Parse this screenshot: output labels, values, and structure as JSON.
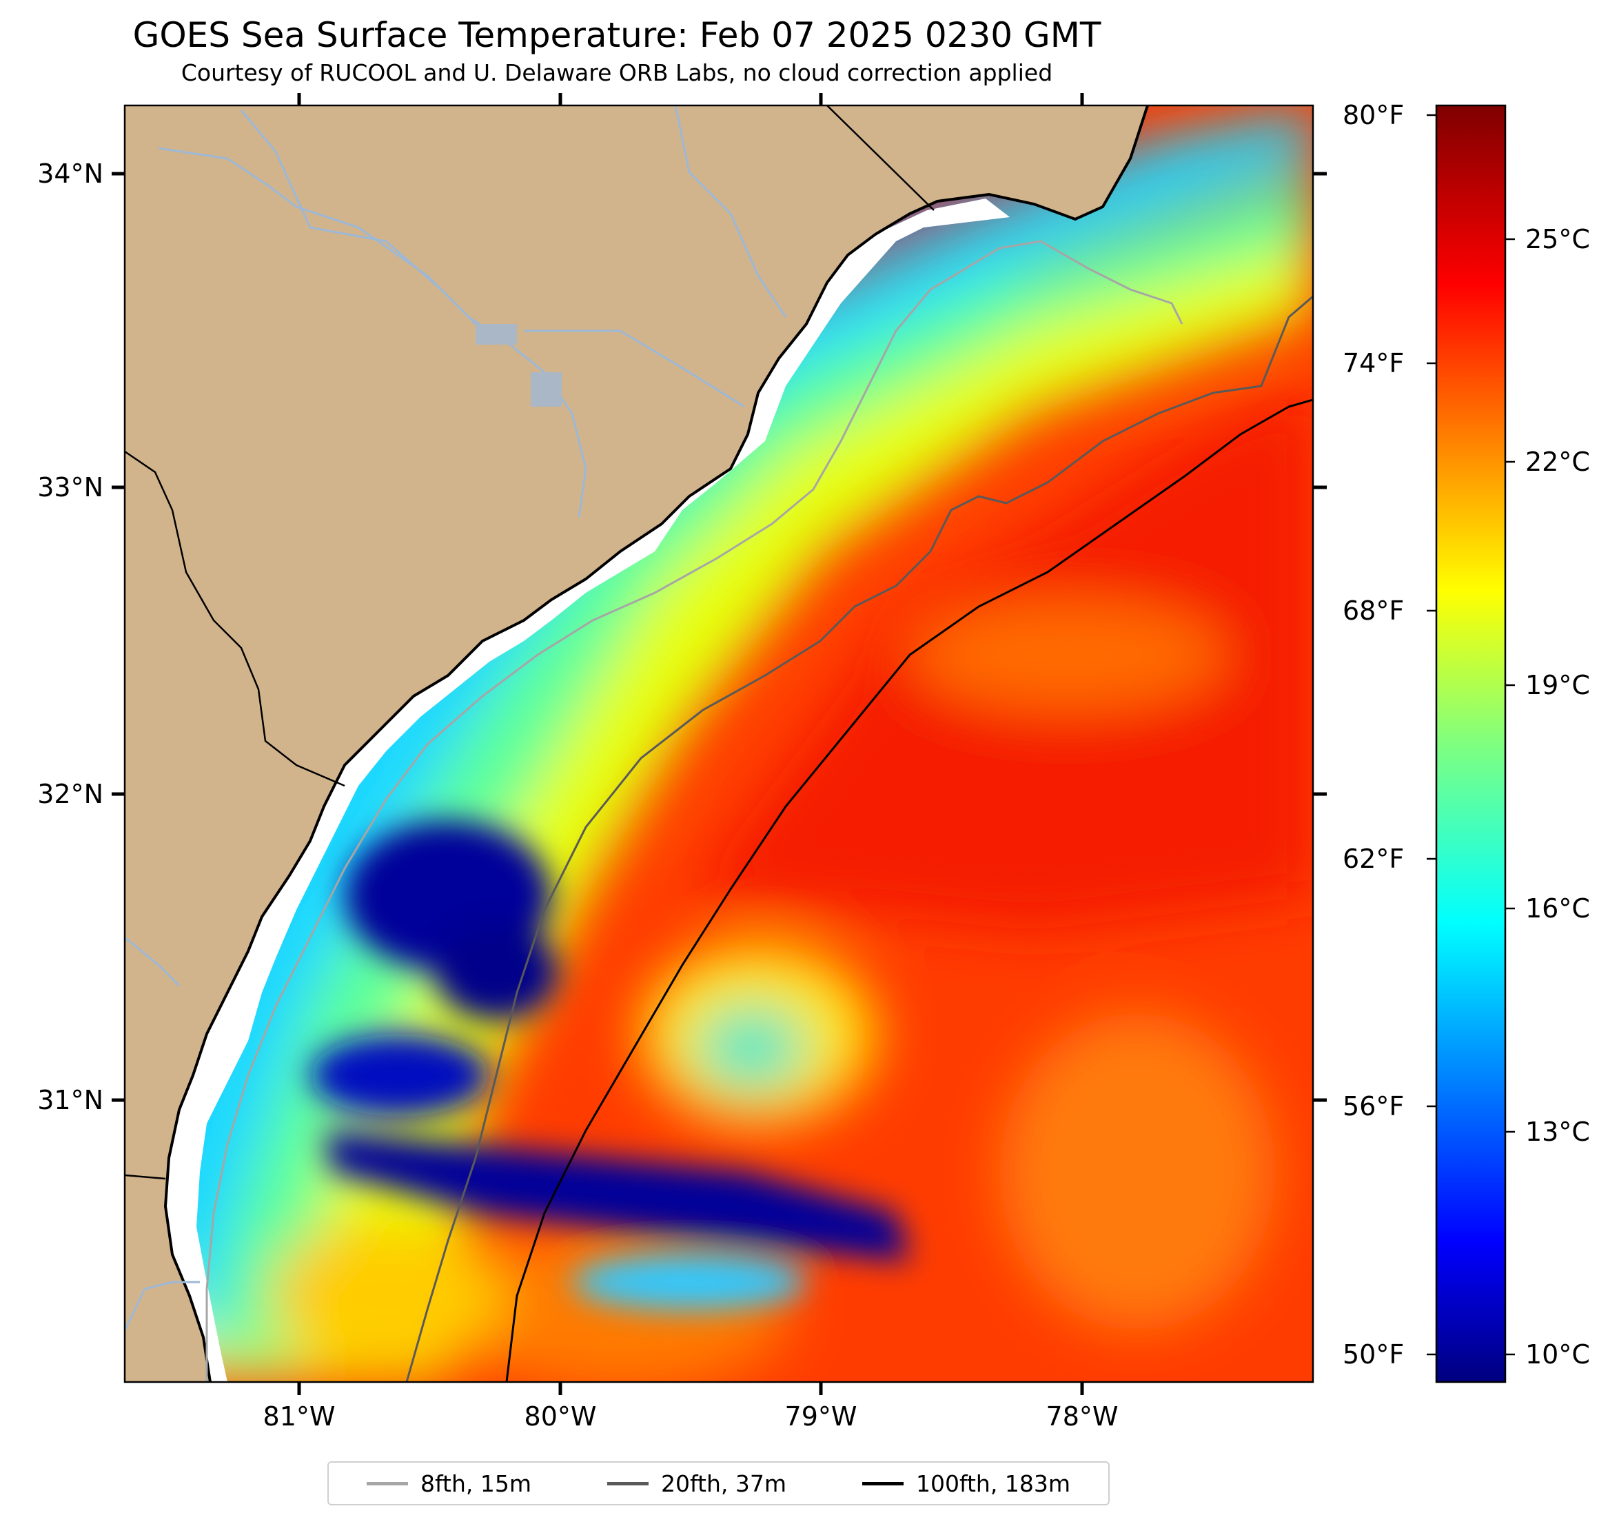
{
  "title": "GOES Sea Surface Temperature: Feb 07 2025 0230 GMT",
  "subtitle": "Courtesy of RUCOOL and U. Delaware ORB Labs, no cloud correction applied",
  "colors": {
    "land": "#d2b48c",
    "coast_band": "#ffffff",
    "river": "#9db8d6",
    "contour_8fth": "#a6a6a6",
    "contour_20fth": "#595959",
    "contour_100fth": "#000000"
  },
  "axes": {
    "lat_labels": [
      "34°N",
      "33°N",
      "32°N",
      "31°N"
    ],
    "lon_labels": [
      "81°W",
      "80°W",
      "79°W",
      "78°W"
    ]
  },
  "colorbar": {
    "fahrenheit_labels": [
      "80°F",
      "74°F",
      "68°F",
      "62°F",
      "56°F",
      "50°F"
    ],
    "celsius_labels": [
      "25°C",
      "22°C",
      "19°C",
      "16°C",
      "13°C",
      "10°C"
    ],
    "colormap": "jet",
    "range_c": [
      9.5,
      27.0
    ]
  },
  "legend": [
    {
      "label": "8fth, 15m",
      "color": "#a6a6a6"
    },
    {
      "label": "20fth, 37m",
      "color": "#595959"
    },
    {
      "label": "100fth, 183m",
      "color": "#000000"
    }
  ]
}
